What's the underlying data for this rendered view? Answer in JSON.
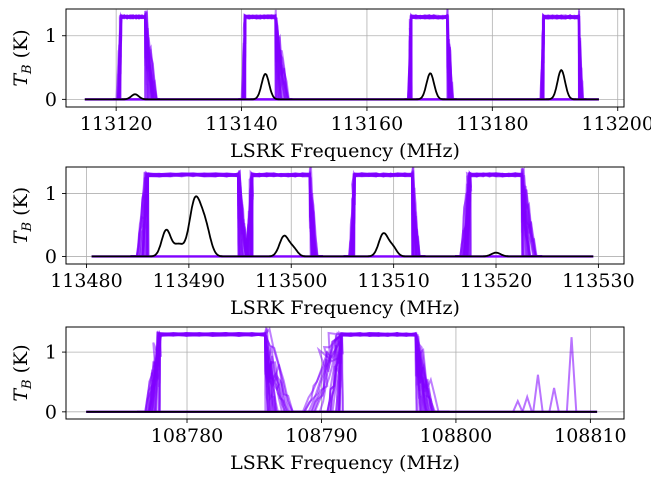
{
  "chart_data": [
    {
      "type": "line",
      "xlabel": "",
      "ylabel": "T_B (K)",
      "xlim": [
        113112,
        113201
      ],
      "ylim": [
        -0.12,
        1.42
      ],
      "xticks": [
        113120,
        113140,
        113160,
        113180,
        113200
      ],
      "xtick_labels": [
        "113120",
        "113140",
        "113160",
        "113180",
        "113200"
      ],
      "yticks": [
        0,
        1
      ],
      "ytick_labels": [
        "0",
        "1"
      ],
      "grid": true,
      "colors": {
        "samples": "#8000ff",
        "mean": "#000000"
      },
      "sample_bands": [
        {
          "start": 113120.0,
          "end": 113126.5,
          "flat_start": 113120.8,
          "flat_end": 113124.6
        },
        {
          "start": 113140.0,
          "end": 113147.6,
          "flat_start": 113140.6,
          "flat_end": 113145.4
        },
        {
          "start": 113166.5,
          "end": 113173.8,
          "flat_start": 113167.1,
          "flat_end": 113172.8
        },
        {
          "start": 113187.6,
          "end": 113194.5,
          "flat_start": 113188.2,
          "flat_end": 113193.8
        }
      ],
      "mean_series": {
        "name": "",
        "x_range": [
          113115,
          113197
        ],
        "baseline": 0.0,
        "peaks": [
          {
            "x": 113123.0,
            "height": 0.08,
            "width": 0.6
          },
          {
            "x": 113143.8,
            "height": 0.4,
            "width": 0.6
          },
          {
            "x": 113170.1,
            "height": 0.41,
            "width": 0.6
          },
          {
            "x": 113191.0,
            "height": 0.46,
            "width": 0.6
          }
        ]
      }
    },
    {
      "type": "line",
      "xlabel": "LSRK Frequency (MHz)",
      "ylabel": "T_B (K)",
      "xlim": [
        113478.0,
        113532.5
      ],
      "ylim": [
        -0.12,
        1.42
      ],
      "xticks": [
        113480,
        113490,
        113500,
        113510,
        113520,
        113530
      ],
      "xtick_labels": [
        "113480",
        "113490",
        "113500",
        "113510",
        "113520",
        "113530"
      ],
      "yticks": [
        0,
        1
      ],
      "ytick_labels": [
        "0",
        "1"
      ],
      "grid": true,
      "colors": {
        "samples": "#8000ff",
        "mean": "#000000"
      },
      "sample_bands": [
        {
          "start": 113484.8,
          "end": 113495.8,
          "flat_start": 113486.0,
          "flat_end": 113494.8
        },
        {
          "start": 113495.6,
          "end": 113502.6,
          "flat_start": 113496.2,
          "flat_end": 113501.8
        },
        {
          "start": 113505.6,
          "end": 113512.6,
          "flat_start": 113506.2,
          "flat_end": 113511.8
        },
        {
          "start": 113516.5,
          "end": 113524.0,
          "flat_start": 113517.5,
          "flat_end": 113522.5
        }
      ],
      "mean_series": {
        "name": "",
        "x_range": [
          113480.5,
          113529.5
        ],
        "baseline": 0.0,
        "peaks": [
          {
            "x": 113487.8,
            "height": 0.42,
            "width": 0.45
          },
          {
            "x": 113489.0,
            "height": 0.18,
            "width": 0.45
          },
          {
            "x": 113490.6,
            "height": 0.88,
            "width": 0.55
          },
          {
            "x": 113491.6,
            "height": 0.45,
            "width": 0.5
          },
          {
            "x": 113499.3,
            "height": 0.32,
            "width": 0.45
          },
          {
            "x": 113500.2,
            "height": 0.12,
            "width": 0.4
          },
          {
            "x": 113509.0,
            "height": 0.36,
            "width": 0.45
          },
          {
            "x": 113509.9,
            "height": 0.14,
            "width": 0.4
          },
          {
            "x": 113520.0,
            "height": 0.06,
            "width": 0.45
          }
        ]
      }
    },
    {
      "type": "line",
      "xlabel": "LSRK Frequency (MHz)",
      "ylabel": "T_B (K)",
      "xlim": [
        108771.0,
        108812.5
      ],
      "ylim": [
        -0.12,
        1.42
      ],
      "xticks": [
        108780,
        108790,
        108800,
        108810
      ],
      "xtick_labels": [
        "108780",
        "108790",
        "108800",
        "108810"
      ],
      "yticks": [
        0,
        1
      ],
      "ytick_labels": [
        "0",
        "1"
      ],
      "grid": true,
      "colors": {
        "samples": "#8000ff",
        "mean": "#000000"
      },
      "sample_bands": [
        {
          "start": 108776.8,
          "end": 108788.0,
          "flat_start": 108778.0,
          "flat_end": 108785.8
        },
        {
          "start": 108788.5,
          "end": 108799.0,
          "flat_start": 108791.5,
          "flat_end": 108797.0
        }
      ],
      "sample_spikes": [
        {
          "x": 108808.6,
          "height": 1.25
        },
        {
          "x": 108806.1,
          "height": 0.62
        },
        {
          "x": 108805.3,
          "height": 0.25
        },
        {
          "x": 108807.3,
          "height": 0.4
        },
        {
          "x": 108804.6,
          "height": 0.18
        }
      ],
      "mean_series": {
        "name": "",
        "x_range": [
          108772.5,
          108810.5
        ],
        "baseline": 0.0,
        "peaks": []
      }
    }
  ]
}
